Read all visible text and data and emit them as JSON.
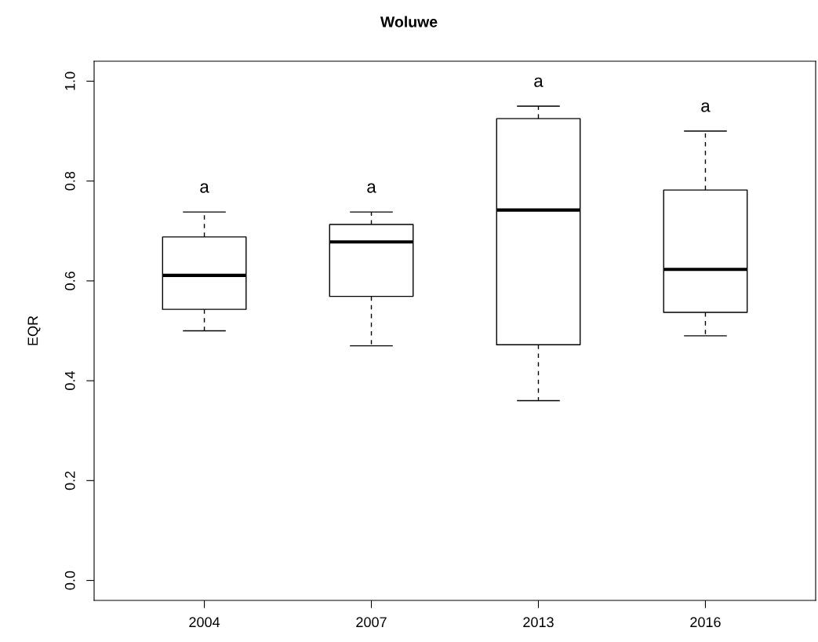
{
  "chart_data": {
    "type": "box",
    "title": "Woluwe",
    "ylabel": "EQR",
    "categories": [
      "2004",
      "2007",
      "2013",
      "2016"
    ],
    "boxes": [
      {
        "low": 0.5,
        "q1": 0.543,
        "median": 0.611,
        "q3": 0.688,
        "high": 0.738
      },
      {
        "low": 0.47,
        "q1": 0.569,
        "median": 0.678,
        "q3": 0.713,
        "high": 0.738
      },
      {
        "low": 0.36,
        "q1": 0.472,
        "median": 0.742,
        "q3": 0.925,
        "high": 0.95
      },
      {
        "low": 0.49,
        "q1": 0.537,
        "median": 0.623,
        "q3": 0.782,
        "high": 0.9
      }
    ],
    "annotations": [
      "a",
      "a",
      "a",
      "a"
    ],
    "ylim": [
      -0.04,
      1.04
    ],
    "yticks": [
      {
        "value": 0,
        "label": "0.0"
      },
      0.2,
      0.4,
      0.6,
      0.8,
      {
        "value": 1,
        "label": "1.0"
      }
    ],
    "grid": false
  }
}
